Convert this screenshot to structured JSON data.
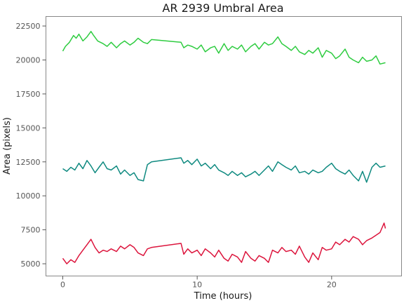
{
  "chart_data": {
    "type": "line",
    "title": "AR 2939 Umbral Area",
    "xlabel": "Time (hours)",
    "ylabel": "Area (pixels)",
    "xlim": [
      -1.25,
      25.2
    ],
    "ylim": [
      4100,
      23200
    ],
    "x_ticks": [
      0,
      10,
      20
    ],
    "y_ticks": [
      5000,
      7500,
      10000,
      12500,
      15000,
      17500,
      20000,
      22500
    ],
    "grid": false,
    "legend": "none",
    "series": [
      {
        "color": "#2ecc40",
        "x": [
          0,
          0.2,
          0.5,
          0.8,
          1.0,
          1.2,
          1.5,
          1.8,
          2.1,
          2.3,
          2.6,
          3.0,
          3.3,
          3.6,
          4.0,
          4.3,
          4.6,
          5.0,
          5.3,
          5.6,
          6.0,
          6.3,
          6.6,
          8.8,
          9.0,
          9.3,
          9.6,
          10.0,
          10.3,
          10.6,
          11.0,
          11.3,
          11.6,
          12.0,
          12.3,
          12.6,
          13.0,
          13.3,
          13.6,
          14.0,
          14.3,
          14.6,
          15.0,
          15.3,
          15.6,
          16.0,
          16.3,
          16.6,
          17.0,
          17.3,
          17.6,
          18.0,
          18.3,
          18.6,
          19.0,
          19.3,
          19.6,
          20.0,
          20.3,
          20.6,
          21.0,
          21.3,
          21.6,
          22.0,
          22.3,
          22.6,
          23.0,
          23.3,
          23.6,
          24.0
        ],
        "values": [
          20650,
          21000,
          21300,
          21800,
          21600,
          21900,
          21400,
          21700,
          22100,
          21800,
          21400,
          21200,
          21000,
          21300,
          20900,
          21200,
          21400,
          21100,
          21300,
          21600,
          21300,
          21200,
          21500,
          21300,
          20900,
          21100,
          21000,
          20800,
          21100,
          20600,
          20900,
          21000,
          20500,
          21200,
          20700,
          21000,
          20800,
          21100,
          20600,
          21000,
          21200,
          20800,
          21300,
          21100,
          21200,
          21700,
          21200,
          21000,
          20700,
          21000,
          20600,
          20400,
          20700,
          20500,
          20900,
          20200,
          20700,
          20500,
          20100,
          20300,
          20800,
          20200,
          20000,
          19800,
          20200,
          19900,
          20000,
          20300,
          19700,
          19800
        ]
      },
      {
        "color": "#0f8a80",
        "x": [
          0,
          0.3,
          0.6,
          0.9,
          1.2,
          1.5,
          1.8,
          2.1,
          2.4,
          2.7,
          3.0,
          3.3,
          3.6,
          4.0,
          4.3,
          4.6,
          5.0,
          5.3,
          5.6,
          6.0,
          6.3,
          6.6,
          8.8,
          9.0,
          9.3,
          9.6,
          10.0,
          10.3,
          10.6,
          11.0,
          11.3,
          11.6,
          12.0,
          12.3,
          12.6,
          13.0,
          13.3,
          13.6,
          14.0,
          14.3,
          14.6,
          15.0,
          15.3,
          15.6,
          16.0,
          16.3,
          16.6,
          17.0,
          17.3,
          17.6,
          18.0,
          18.3,
          18.6,
          19.0,
          19.3,
          19.6,
          20.0,
          20.3,
          20.6,
          21.0,
          21.3,
          21.6,
          22.0,
          22.3,
          22.6,
          23.0,
          23.3,
          23.6,
          24.0
        ],
        "values": [
          12000,
          11800,
          12100,
          11900,
          12400,
          12000,
          12600,
          12200,
          11700,
          12100,
          12500,
          12000,
          11900,
          12200,
          11600,
          11900,
          11500,
          11700,
          11200,
          11100,
          12300,
          12500,
          12800,
          12400,
          12600,
          12300,
          12700,
          12200,
          12400,
          12000,
          12300,
          11900,
          11700,
          11500,
          11800,
          11500,
          11700,
          11400,
          11600,
          11800,
          11500,
          11900,
          12200,
          11800,
          12500,
          12300,
          12100,
          11900,
          12200,
          11700,
          11800,
          11600,
          11900,
          11700,
          11800,
          12100,
          12400,
          12000,
          11800,
          11600,
          11900,
          11500,
          11100,
          11800,
          11000,
          12100,
          12400,
          12100,
          12200
        ]
      },
      {
        "color": "#dc143c",
        "x": [
          0,
          0.3,
          0.6,
          0.9,
          1.2,
          1.5,
          1.8,
          2.1,
          2.4,
          2.7,
          3.0,
          3.3,
          3.6,
          4.0,
          4.3,
          4.6,
          5.0,
          5.3,
          5.6,
          6.0,
          6.3,
          6.6,
          8.8,
          9.0,
          9.3,
          9.6,
          10.0,
          10.3,
          10.6,
          11.0,
          11.3,
          11.6,
          12.0,
          12.3,
          12.6,
          13.0,
          13.3,
          13.6,
          14.0,
          14.3,
          14.6,
          15.0,
          15.3,
          15.6,
          16.0,
          16.3,
          16.6,
          17.0,
          17.3,
          17.6,
          18.0,
          18.3,
          18.6,
          19.0,
          19.3,
          19.6,
          20.0,
          20.3,
          20.6,
          21.0,
          21.3,
          21.6,
          22.0,
          22.3,
          22.6,
          23.0,
          23.3,
          23.6,
          23.9,
          24.0
        ],
        "values": [
          5400,
          5000,
          5300,
          5100,
          5600,
          6000,
          6400,
          6800,
          6200,
          5800,
          6000,
          5900,
          6100,
          5900,
          6300,
          6100,
          6400,
          6200,
          5800,
          5600,
          6100,
          6200,
          6500,
          5700,
          6100,
          5800,
          6000,
          5600,
          6100,
          5800,
          5500,
          6000,
          5400,
          5200,
          5700,
          5500,
          5100,
          5900,
          5400,
          5200,
          5600,
          5400,
          5100,
          6000,
          5800,
          6200,
          5900,
          6000,
          5700,
          6300,
          5500,
          5100,
          5800,
          5300,
          6200,
          6000,
          6100,
          6600,
          6400,
          6800,
          6600,
          7000,
          6800,
          6400,
          6700,
          6900,
          7100,
          7300,
          8000,
          7600
        ]
      }
    ]
  }
}
